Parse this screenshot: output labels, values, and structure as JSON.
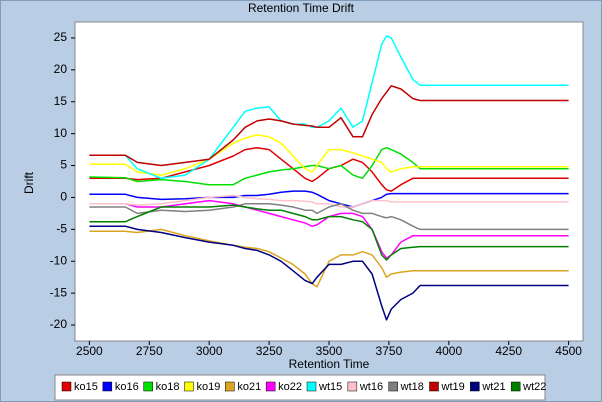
{
  "chart_data": {
    "type": "line",
    "title": "Retention Time Drift",
    "x_label": "Retention Time",
    "y_label": "Drift",
    "x": [
      2500,
      2650,
      2700,
      2800,
      2900,
      3000,
      3100,
      3150,
      3200,
      3250,
      3300,
      3350,
      3400,
      3430,
      3450,
      3500,
      3550,
      3600,
      3640,
      3680,
      3720,
      3740,
      3760,
      3800,
      3850,
      3880,
      4500
    ],
    "series": [
      {
        "name": "ko15",
        "color": "#e00000",
        "values": [
          3,
          3,
          2.8,
          3,
          4,
          5,
          6.5,
          7.5,
          7.8,
          7.5,
          6,
          4.5,
          3,
          2.5,
          3,
          4.5,
          5,
          6,
          5.5,
          4,
          2,
          1.2,
          1,
          2,
          3,
          3,
          3
        ]
      },
      {
        "name": "ko16",
        "color": "#0000ff",
        "values": [
          0.5,
          0.5,
          0,
          -0.3,
          -0.2,
          0,
          0,
          0.3,
          0.3,
          0.5,
          0.8,
          1,
          1,
          0.8,
          0.5,
          -0.5,
          -1,
          -1.5,
          -1,
          -0.5,
          0,
          0.5,
          0.6,
          0.6,
          0.6,
          0.6,
          0.6
        ]
      },
      {
        "name": "ko18",
        "color": "#00e000",
        "values": [
          3.2,
          3.1,
          2.5,
          2.8,
          2.5,
          2,
          2,
          3,
          3.5,
          4,
          4.3,
          4.5,
          4.8,
          5,
          5,
          4.5,
          5,
          3.5,
          3,
          5,
          7.5,
          7.8,
          7.5,
          6.8,
          5.5,
          4.5,
          4.5
        ]
      },
      {
        "name": "ko19",
        "color": "#ffff00",
        "values": [
          5.2,
          5.2,
          4,
          3.5,
          4.5,
          6,
          8.5,
          9.3,
          9.8,
          9.5,
          8.5,
          6.5,
          4.5,
          4,
          5,
          7.5,
          7.5,
          7,
          6.5,
          6,
          5.5,
          4.5,
          4,
          4.5,
          4.8,
          4.8,
          4.8
        ]
      },
      {
        "name": "ko21",
        "color": "#daa520",
        "values": [
          -5.3,
          -5.3,
          -5.5,
          -5,
          -6,
          -6.8,
          -7.5,
          -7.8,
          -8,
          -8.5,
          -9.5,
          -10.5,
          -12,
          -13.5,
          -14,
          -10,
          -9,
          -9,
          -8.5,
          -9,
          -11,
          -12.5,
          -12,
          -11.7,
          -11.5,
          -11.5,
          -11.5
        ]
      },
      {
        "name": "ko22",
        "color": "#ff00ff",
        "values": [
          -1,
          -1,
          -1.5,
          -1.5,
          -1,
          -0.5,
          -1,
          -1.5,
          -2,
          -2.5,
          -3,
          -3.5,
          -4,
          -4.5,
          -4.3,
          -3,
          -2.5,
          -2.5,
          -3,
          -5,
          -8.5,
          -9.5,
          -9,
          -7,
          -6,
          -6,
          -6
        ]
      },
      {
        "name": "wt15",
        "color": "#00ffff",
        "values": [
          6.6,
          6.6,
          4.5,
          3,
          3.5,
          6,
          11,
          13.5,
          14,
          14.2,
          12,
          11.5,
          11.5,
          11,
          11,
          12,
          14,
          11,
          12,
          18,
          24,
          25.3,
          25,
          22,
          18.5,
          17.6,
          17.6
        ]
      },
      {
        "name": "wt16",
        "color": "#ffc0cb",
        "values": [
          -1,
          -1,
          -1.2,
          -1,
          -0.5,
          0,
          0.3,
          0,
          -0.2,
          -0.3,
          -0.5,
          -0.5,
          -0.6,
          -0.7,
          -1,
          -1,
          -1.5,
          -1.5,
          -1,
          -0.5,
          -0.5,
          -0.5,
          -0.7,
          -0.7,
          -0.7,
          -0.7,
          -0.7
        ]
      },
      {
        "name": "wt18",
        "color": "#808080",
        "values": [
          -1.5,
          -1.5,
          -2.5,
          -2,
          -2.2,
          -2,
          -1.5,
          -1,
          -1,
          -1,
          -1.2,
          -1.5,
          -2,
          -2,
          -2.5,
          -1.5,
          -1,
          -2,
          -2.5,
          -2.5,
          -3,
          -3.2,
          -3,
          -3.5,
          -4.5,
          -5,
          -5
        ]
      },
      {
        "name": "wt19",
        "color": "#c00000",
        "values": [
          6.6,
          6.6,
          5.5,
          5,
          5.5,
          6,
          9,
          11,
          12,
          12.3,
          12,
          11.5,
          11.3,
          11.2,
          11,
          11,
          12.5,
          9.5,
          9.5,
          13,
          15.5,
          16.5,
          17.5,
          17,
          15.5,
          15.2,
          15.2
        ]
      },
      {
        "name": "wt21",
        "color": "#000080",
        "values": [
          -4.5,
          -4.5,
          -5,
          -5.5,
          -6.3,
          -7,
          -7.5,
          -8,
          -8.3,
          -9,
          -10,
          -11.5,
          -13,
          -13.5,
          -12.5,
          -10.5,
          -10.5,
          -10,
          -10,
          -12,
          -17,
          -19.2,
          -17.5,
          -16,
          -15,
          -13.8,
          -13.8
        ]
      },
      {
        "name": "wt22",
        "color": "#008000",
        "values": [
          -3.8,
          -3.8,
          -3,
          -1.5,
          -1.5,
          -1.5,
          -1.2,
          -1.5,
          -1.8,
          -2,
          -2,
          -2.5,
          -3,
          -3.5,
          -3.5,
          -3,
          -3,
          -3.5,
          -3.8,
          -5,
          -9,
          -9.8,
          -9,
          -8,
          -7.8,
          -7.7,
          -7.7
        ]
      }
    ],
    "xlim": [
      2440,
      4560
    ],
    "ylim": [
      -22.5,
      27.5
    ],
    "xticks": [
      2500,
      2750,
      3000,
      3250,
      3500,
      3750,
      4000,
      4250,
      4500
    ],
    "yticks": [
      -20,
      -15,
      -10,
      -5,
      0,
      5,
      10,
      15,
      20,
      25
    ]
  }
}
